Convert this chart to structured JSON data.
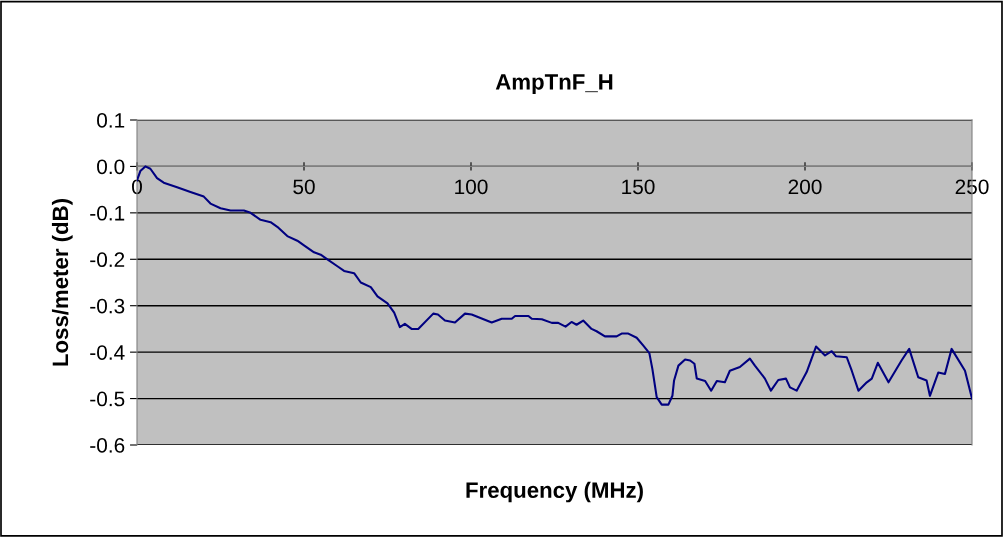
{
  "chart_data": {
    "type": "line",
    "title": "AmpTnF_H",
    "xlabel": "Frequency (MHz)",
    "ylabel": "Loss/meter (dB)",
    "xlim": [
      0,
      250
    ],
    "xticks": [
      0,
      50,
      100,
      150,
      200,
      250
    ],
    "ylim": [
      -0.6,
      0.1
    ],
    "yticks": [
      0.1,
      {
        "value": 0,
        "label": "0.0"
      },
      -0.1,
      -0.2,
      -0.3,
      -0.4,
      -0.5,
      -0.6
    ],
    "grid": "y",
    "legend": false,
    "marker": "none",
    "line_style": "solid",
    "series": [
      {
        "color": "#000080",
        "x": [
          0,
          1,
          2.5,
          4,
          6,
          8,
          12,
          16,
          20,
          22,
          25,
          28,
          32,
          34,
          37,
          40,
          42,
          45,
          48,
          50,
          53,
          55,
          57,
          60,
          62,
          65,
          67,
          70,
          72,
          75,
          77,
          78.7,
          80.2,
          82.2,
          84.2,
          88.7,
          90.1,
          92.2,
          95.2,
          98.2,
          100.2,
          106.2,
          109.2,
          112.2,
          113.2,
          117.2,
          118.2,
          121.2,
          124.2,
          126.1,
          128.3,
          130.1,
          131.6,
          133.6,
          136.1,
          137.6,
          140.1,
          143.6,
          145.1,
          147.1,
          149.6,
          151.6,
          153.4,
          154.3,
          155.6,
          157.1,
          159.1,
          160.3,
          160.8,
          162.1,
          164.1,
          165.6,
          166.9,
          167.6,
          170.1,
          171.9,
          173.6,
          176.0,
          177.5,
          180.5,
          183.5,
          185.0,
          188.0,
          189.8,
          192.0,
          194.3,
          195.5,
          197.5,
          200.5,
          203.3,
          206.0,
          208.0,
          209.3,
          212.5,
          214.0,
          216.0,
          218.5,
          220.0,
          221.8,
          225.0,
          228.9,
          231.2,
          233.9,
          236.4,
          237.4,
          239.9,
          241.9,
          243.9,
          247.9,
          250
        ],
        "values": [
          -0.03,
          -0.01,
          0.0,
          -0.005,
          -0.025,
          -0.035,
          -0.045,
          -0.055,
          -0.065,
          -0.08,
          -0.09,
          -0.095,
          -0.095,
          -0.1,
          -0.115,
          -0.12,
          -0.13,
          -0.15,
          -0.16,
          -0.17,
          -0.185,
          -0.19,
          -0.2,
          -0.215,
          -0.225,
          -0.23,
          -0.25,
          -0.26,
          -0.28,
          -0.295,
          -0.315,
          -0.346,
          -0.339,
          -0.35,
          -0.35,
          -0.317,
          -0.319,
          -0.332,
          -0.336,
          -0.317,
          -0.319,
          -0.336,
          -0.328,
          -0.328,
          -0.322,
          -0.322,
          -0.328,
          -0.329,
          -0.337,
          -0.337,
          -0.345,
          -0.335,
          -0.341,
          -0.332,
          -0.35,
          -0.355,
          -0.366,
          -0.366,
          -0.36,
          -0.36,
          -0.369,
          -0.386,
          -0.402,
          -0.436,
          -0.497,
          -0.513,
          -0.513,
          -0.494,
          -0.461,
          -0.429,
          -0.416,
          -0.418,
          -0.425,
          -0.457,
          -0.462,
          -0.483,
          -0.462,
          -0.465,
          -0.44,
          -0.432,
          -0.414,
          -0.429,
          -0.457,
          -0.483,
          -0.46,
          -0.457,
          -0.476,
          -0.483,
          -0.443,
          -0.388,
          -0.407,
          -0.398,
          -0.409,
          -0.411,
          -0.44,
          -0.483,
          -0.465,
          -0.457,
          -0.423,
          -0.465,
          -0.418,
          -0.393,
          -0.454,
          -0.461,
          -0.494,
          -0.444,
          -0.447,
          -0.393,
          -0.44,
          -0.5
        ]
      }
    ]
  }
}
